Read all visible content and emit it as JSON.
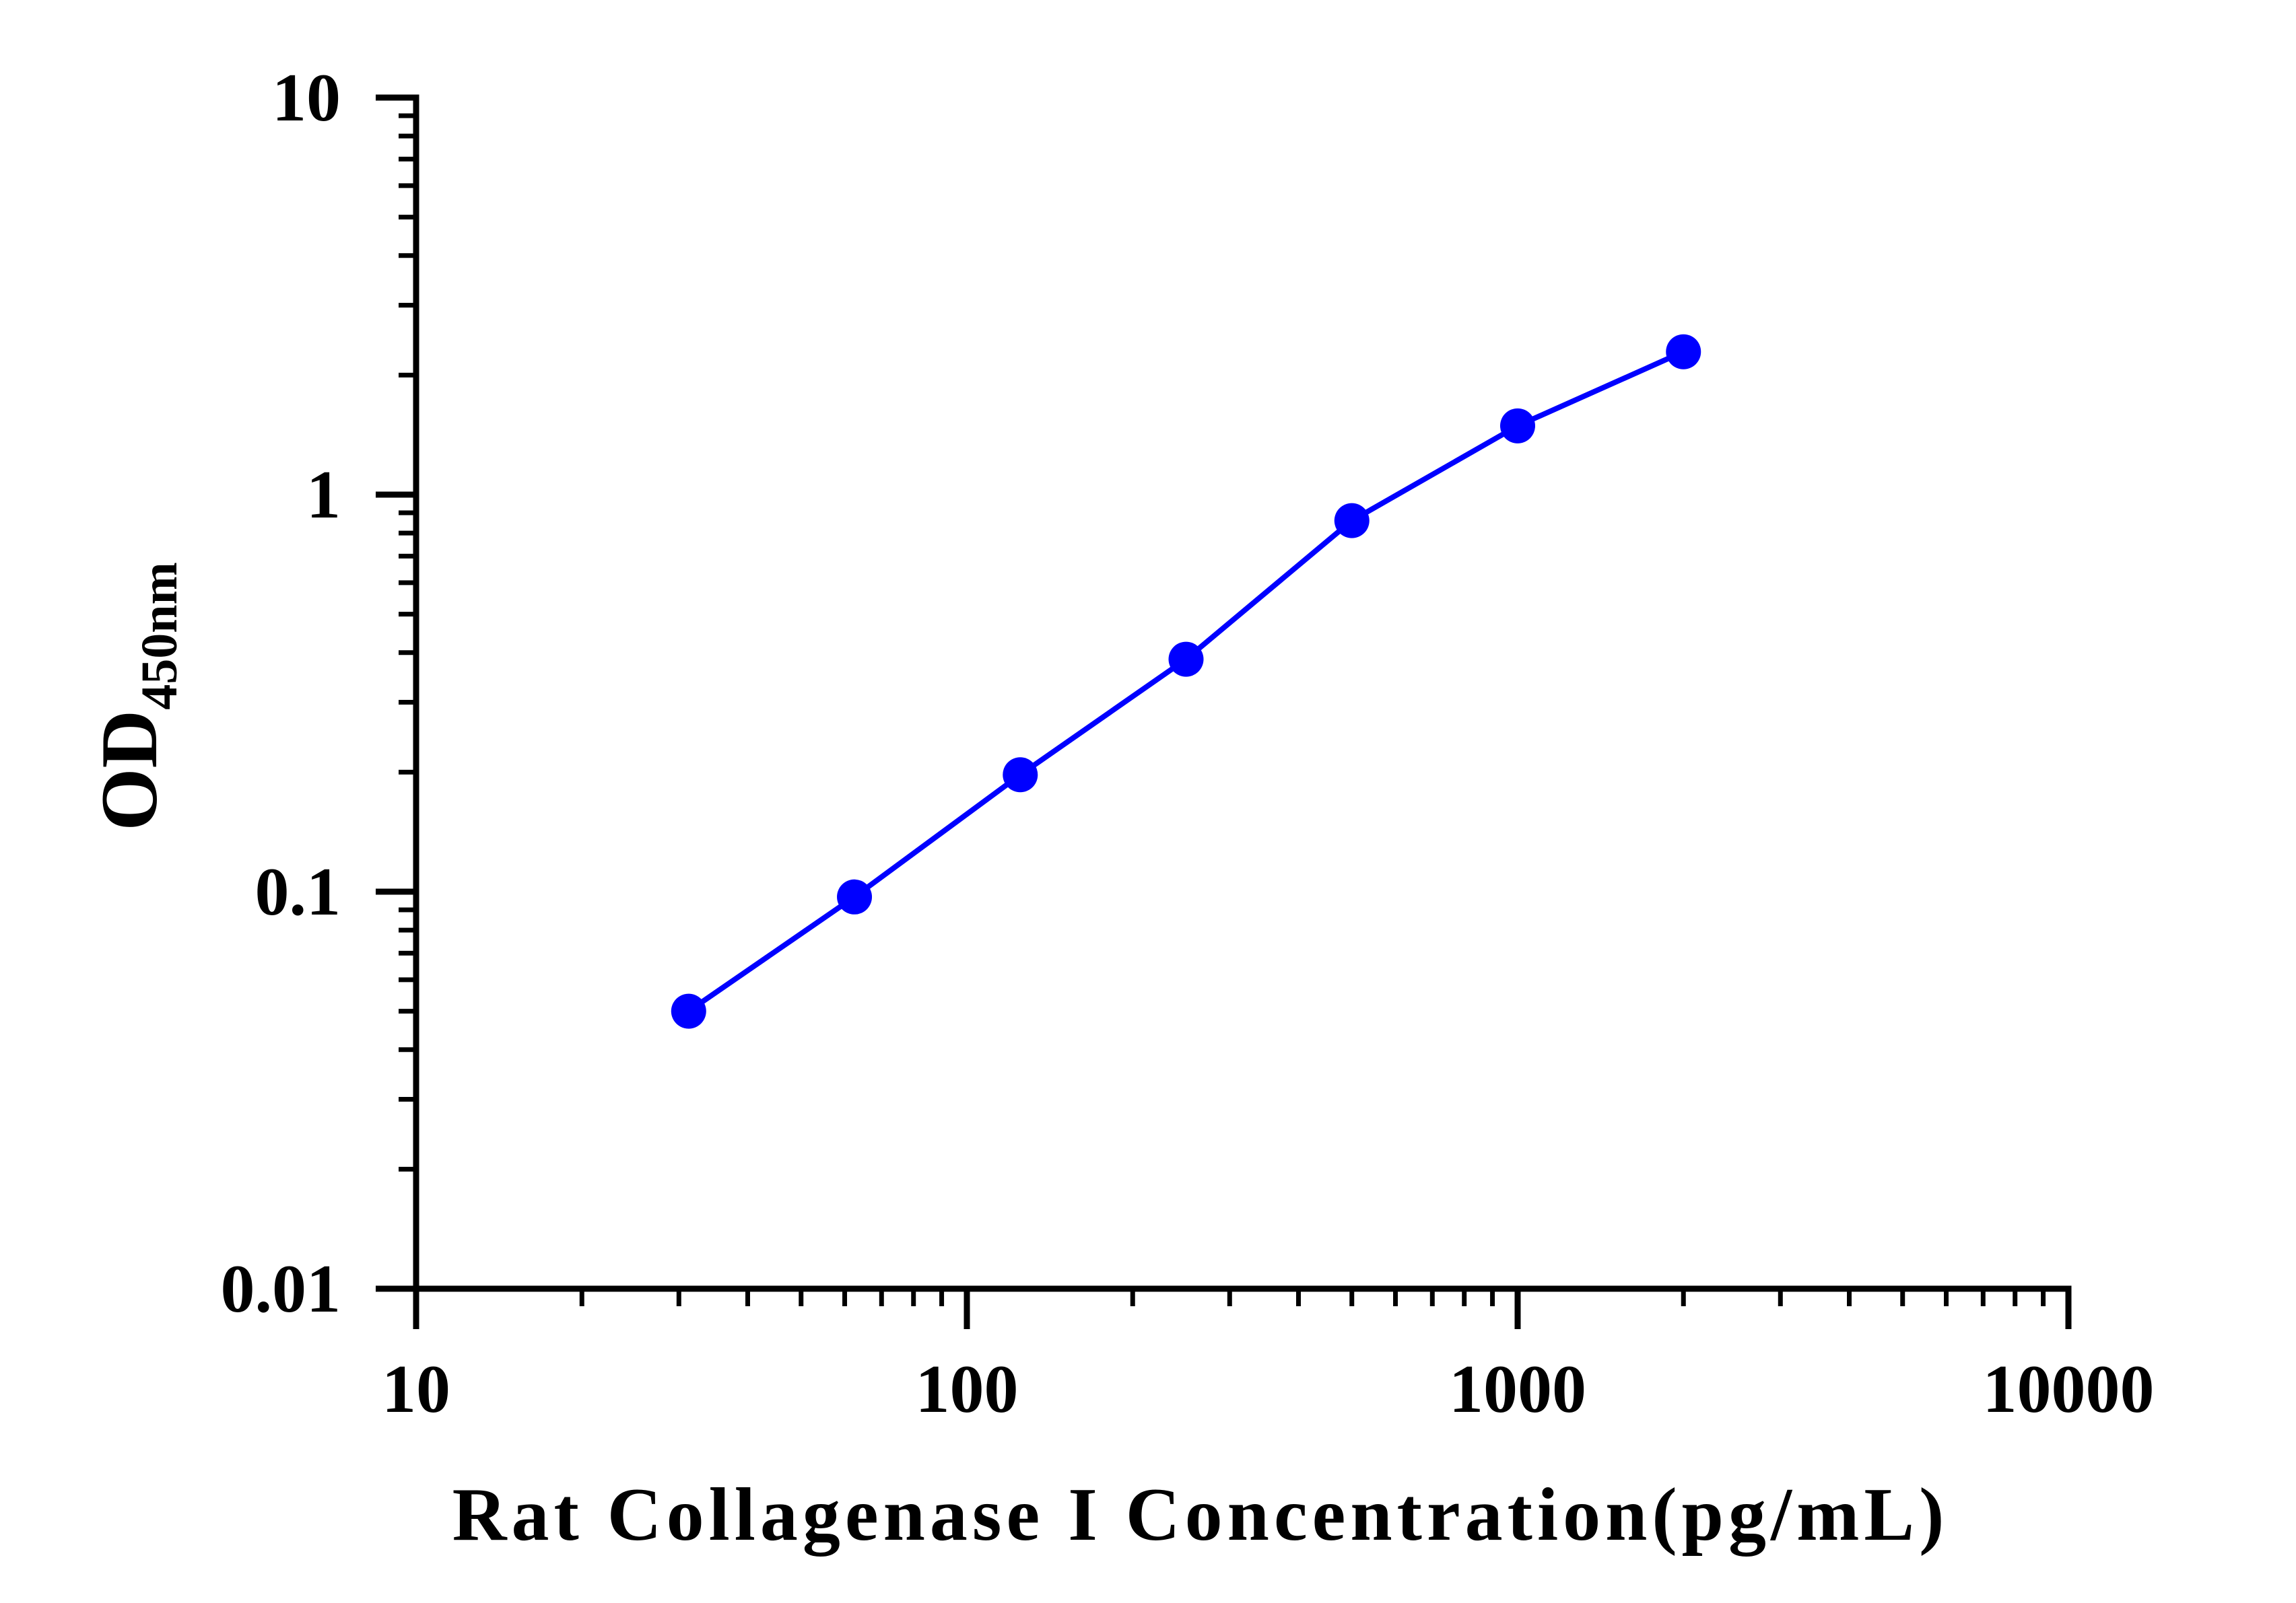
{
  "chart_data": {
    "type": "line",
    "title": "",
    "xlabel": "Rat Collagenase I Concentration(pg/mL)",
    "ylabel": {
      "main": "OD",
      "subscript": "450nm"
    },
    "x_scale": "log",
    "y_scale": "log",
    "xlim": [
      10,
      10000
    ],
    "ylim": [
      0.01,
      10
    ],
    "x_ticks": [
      "10",
      "100",
      "1000",
      "10000"
    ],
    "y_ticks": [
      "0.01",
      "0.1",
      "1",
      "10"
    ],
    "grid": false,
    "legend": "none",
    "series": [
      {
        "color": "#0000ff",
        "marker": "circle",
        "x": [
          31.25,
          62.5,
          125,
          250,
          500,
          1000,
          2000
        ],
        "y": [
          0.05,
          0.097,
          0.197,
          0.385,
          0.86,
          1.49,
          2.29
        ]
      }
    ]
  }
}
